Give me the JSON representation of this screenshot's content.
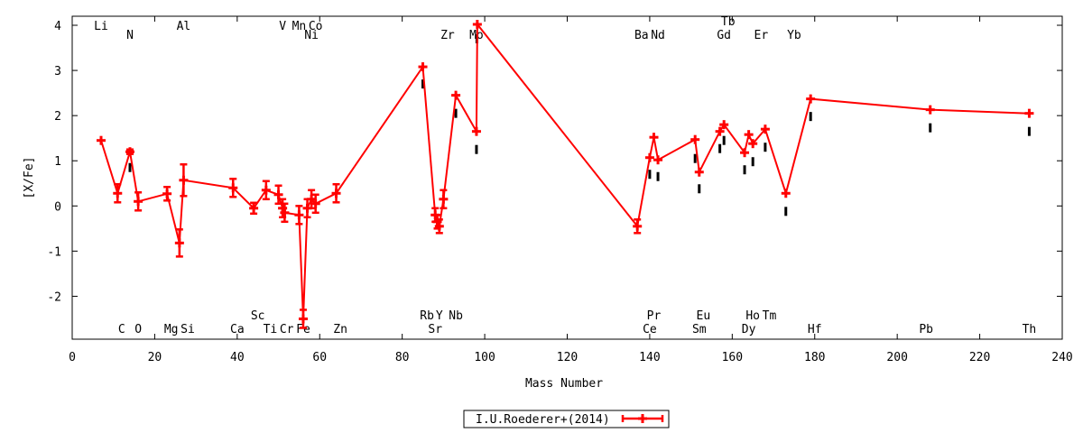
{
  "chart_data": {
    "type": "line",
    "title": "",
    "xlabel": "Mass Number",
    "ylabel": "[X/Fe]",
    "xlim": [
      0,
      240
    ],
    "ylim": [
      -2.95,
      4.2
    ],
    "xticks": [
      0,
      20,
      40,
      60,
      80,
      100,
      120,
      140,
      160,
      180,
      200,
      220,
      240
    ],
    "yticks": [
      -2,
      -1,
      0,
      1,
      2,
      3,
      4
    ],
    "grid": false,
    "legend_position": "bottom-center",
    "colors": {
      "series": "#ff0000",
      "reference_points": "#000000"
    },
    "series": [
      {
        "name": "I.U.Roederer+(2014)",
        "points": [
          {
            "x": 7,
            "y": 1.45,
            "err": 0.0
          },
          {
            "x": 11,
            "y": 0.28,
            "err": 0.2
          },
          {
            "x": 14,
            "y": 1.2,
            "err": 0.05
          },
          {
            "x": 16,
            "y": 0.1,
            "err": 0.2
          },
          {
            "x": 23,
            "y": 0.27,
            "err": 0.15
          },
          {
            "x": 26,
            "y": -0.82,
            "err": 0.3
          },
          {
            "x": 27,
            "y": 0.57,
            "err": 0.35
          },
          {
            "x": 39,
            "y": 0.4,
            "err": 0.2
          },
          {
            "x": 44,
            "y": -0.05,
            "err": 0.12
          },
          {
            "x": 47,
            "y": 0.35,
            "err": 0.2
          },
          {
            "x": 50,
            "y": 0.25,
            "err": 0.2
          },
          {
            "x": 51,
            "y": -0.05,
            "err": 0.2
          },
          {
            "x": 51.5,
            "y": -0.15,
            "err": 0.2
          },
          {
            "x": 55,
            "y": -0.2,
            "err": 0.2
          },
          {
            "x": 56,
            "y": -2.5,
            "err": 0.2
          },
          {
            "x": 57,
            "y": -0.05,
            "err": 0.2
          },
          {
            "x": 58,
            "y": 0.15,
            "err": 0.2
          },
          {
            "x": 59,
            "y": 0.05,
            "err": 0.2
          },
          {
            "x": 64,
            "y": 0.28,
            "err": 0.2
          },
          {
            "x": 85,
            "y": 3.08,
            "err": 0.0
          },
          {
            "x": 88,
            "y": -0.2,
            "err": 0.15
          },
          {
            "x": 88.5,
            "y": -0.35,
            "err": 0.15
          },
          {
            "x": 89,
            "y": -0.45,
            "err": 0.15
          },
          {
            "x": 90,
            "y": 0.15,
            "err": 0.2
          },
          {
            "x": 93,
            "y": 2.45,
            "err": 0.0
          },
          {
            "x": 98,
            "y": 1.65,
            "err": 0.0
          },
          {
            "x": 98.2,
            "y": 4.02,
            "err": 0.0
          },
          {
            "x": 137,
            "y": -0.45,
            "err": 0.15
          },
          {
            "x": 140,
            "y": 1.07,
            "err": 0.0
          },
          {
            "x": 141,
            "y": 1.52,
            "err": 0.0
          },
          {
            "x": 142,
            "y": 1.02,
            "err": 0.0
          },
          {
            "x": 151,
            "y": 1.47,
            "err": 0.0
          },
          {
            "x": 152,
            "y": 0.75,
            "err": 0.0
          },
          {
            "x": 157,
            "y": 1.65,
            "err": 0.0
          },
          {
            "x": 158,
            "y": 1.8,
            "err": 0.0
          },
          {
            "x": 163,
            "y": 1.18,
            "err": 0.0
          },
          {
            "x": 164,
            "y": 1.58,
            "err": 0.0
          },
          {
            "x": 165,
            "y": 1.38,
            "err": 0.0
          },
          {
            "x": 168,
            "y": 1.7,
            "err": 0.0
          },
          {
            "x": 173,
            "y": 0.28,
            "err": 0.0
          },
          {
            "x": 179,
            "y": 2.37,
            "err": 0.0
          },
          {
            "x": 208,
            "y": 2.13,
            "err": 0.0
          },
          {
            "x": 232,
            "y": 2.05,
            "err": 0.0
          }
        ]
      }
    ],
    "reference_points": [
      {
        "x": 14,
        "y": 0.85
      },
      {
        "x": 85,
        "y": 2.7
      },
      {
        "x": 93,
        "y": 2.05
      },
      {
        "x": 98,
        "y": 1.25
      },
      {
        "x": 98.1,
        "y": 3.7
      },
      {
        "x": 140,
        "y": 0.7
      },
      {
        "x": 142,
        "y": 0.65
      },
      {
        "x": 151,
        "y": 1.05
      },
      {
        "x": 152,
        "y": 0.38
      },
      {
        "x": 157,
        "y": 1.27
      },
      {
        "x": 158,
        "y": 1.45
      },
      {
        "x": 163,
        "y": 0.8
      },
      {
        "x": 165,
        "y": 0.98
      },
      {
        "x": 168,
        "y": 1.3
      },
      {
        "x": 173,
        "y": -0.12
      },
      {
        "x": 179,
        "y": 1.98
      },
      {
        "x": 208,
        "y": 1.73
      },
      {
        "x": 232,
        "y": 1.65
      }
    ],
    "element_labels": [
      {
        "text": "Li",
        "x": 7,
        "row": "top1"
      },
      {
        "text": "N",
        "x": 14,
        "row": "top2"
      },
      {
        "text": "Al",
        "x": 27,
        "row": "top1"
      },
      {
        "text": "V",
        "x": 51,
        "row": "top1"
      },
      {
        "text": "Mn",
        "x": 55,
        "row": "top1"
      },
      {
        "text": "Co",
        "x": 59,
        "row": "top1"
      },
      {
        "text": "Ni",
        "x": 58,
        "row": "top2"
      },
      {
        "text": "Zr",
        "x": 91,
        "row": "top2"
      },
      {
        "text": "Mo",
        "x": 98,
        "row": "top2"
      },
      {
        "text": "Ba",
        "x": 138,
        "row": "top2"
      },
      {
        "text": "Nd",
        "x": 142,
        "row": "top2"
      },
      {
        "text": "Tb",
        "x": 159,
        "row": "top0"
      },
      {
        "text": "Gd",
        "x": 158,
        "row": "top2"
      },
      {
        "text": "Er",
        "x": 167,
        "row": "top2"
      },
      {
        "text": "Yb",
        "x": 175,
        "row": "top2"
      },
      {
        "text": "Sc",
        "x": 45,
        "row": "bot1"
      },
      {
        "text": "Rb",
        "x": 86,
        "row": "bot1"
      },
      {
        "text": "Y",
        "x": 89,
        "row": "bot1"
      },
      {
        "text": "Nb",
        "x": 93,
        "row": "bot1"
      },
      {
        "text": "Pr",
        "x": 141,
        "row": "bot1"
      },
      {
        "text": "Eu",
        "x": 153,
        "row": "bot1"
      },
      {
        "text": "Ho",
        "x": 165,
        "row": "bot1"
      },
      {
        "text": "Tm",
        "x": 169,
        "row": "bot1"
      },
      {
        "text": "C",
        "x": 12,
        "row": "bot2"
      },
      {
        "text": "O",
        "x": 16,
        "row": "bot2"
      },
      {
        "text": "Mg",
        "x": 24,
        "row": "bot2"
      },
      {
        "text": "Si",
        "x": 28,
        "row": "bot2"
      },
      {
        "text": "Ca",
        "x": 40,
        "row": "bot2"
      },
      {
        "text": "Ti",
        "x": 48,
        "row": "bot2"
      },
      {
        "text": "Cr",
        "x": 52,
        "row": "bot2"
      },
      {
        "text": "Fe",
        "x": 56,
        "row": "bot2"
      },
      {
        "text": "Zn",
        "x": 65,
        "row": "bot2"
      },
      {
        "text": "Sr",
        "x": 88,
        "row": "bot2"
      },
      {
        "text": "Ce",
        "x": 140,
        "row": "bot2"
      },
      {
        "text": "Sm",
        "x": 152,
        "row": "bot2"
      },
      {
        "text": "Dy",
        "x": 164,
        "row": "bot2"
      },
      {
        "text": "Hf",
        "x": 180,
        "row": "bot2"
      },
      {
        "text": "Pb",
        "x": 207,
        "row": "bot2"
      },
      {
        "text": "Th",
        "x": 232,
        "row": "bot2"
      }
    ]
  }
}
